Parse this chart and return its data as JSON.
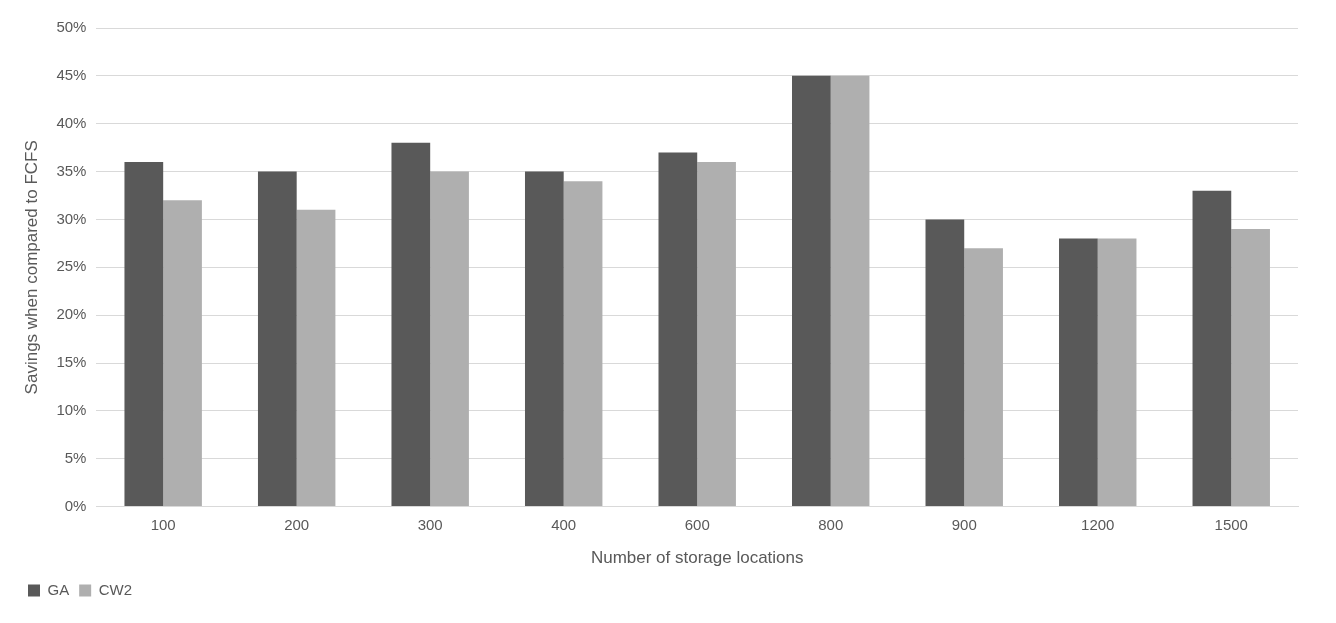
{
  "chart_data": {
    "type": "bar",
    "xlabel": "Number of storage locations",
    "ylabel": "Savings when compared to FCFS",
    "categories": [
      "100",
      "200",
      "300",
      "400",
      "600",
      "800",
      "900",
      "1200",
      "1500"
    ],
    "series": [
      {
        "name": "GA",
        "color": "#595959",
        "values": [
          36,
          35,
          38,
          35,
          37,
          45,
          30,
          28,
          33
        ]
      },
      {
        "name": "CW2",
        "color": "#afafaf",
        "values": [
          32,
          31,
          35,
          34,
          36,
          45,
          27,
          28,
          29
        ]
      }
    ],
    "ylim": [
      0,
      50
    ],
    "yticks": [
      {
        "value": 0,
        "label": "0%"
      },
      {
        "value": 5,
        "label": "5%"
      },
      {
        "value": 10,
        "label": "10%"
      },
      {
        "value": 15,
        "label": "15%"
      },
      {
        "value": 20,
        "label": "20%"
      },
      {
        "value": 25,
        "label": "25%"
      },
      {
        "value": 30,
        "label": "30%"
      },
      {
        "value": 35,
        "label": "35%"
      },
      {
        "value": 40,
        "label": "40%"
      },
      {
        "value": 45,
        "label": "45%"
      },
      {
        "value": 50,
        "label": "50%"
      }
    ],
    "grid": "y",
    "legend": "bottom left"
  }
}
